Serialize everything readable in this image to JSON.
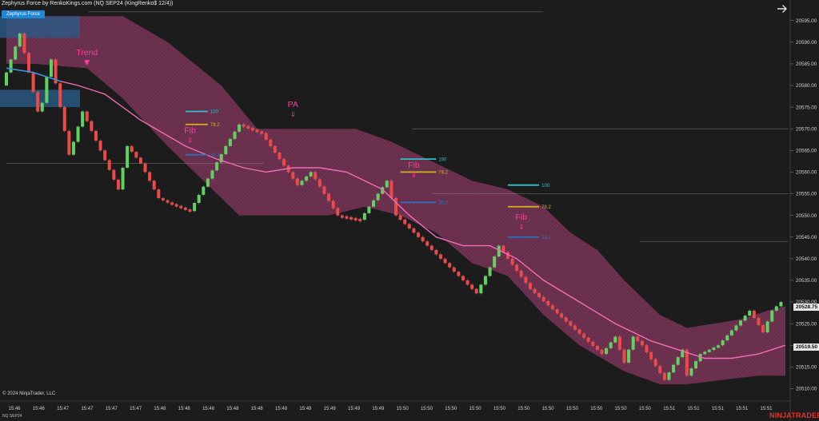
{
  "header": {
    "title": "Zephyrus Force by RenkoKings.com (NQ SEP24 (KingRenko$ 12/4))",
    "indicator_button": "Zephyrus Force"
  },
  "footer": {
    "copyright": "© 2024 NinjaTrader, LLC",
    "instrument": "NQ SEP24",
    "brand": "NINJATRADER"
  },
  "colors": {
    "background": "#1c1c1c",
    "bull": "#5fd35f",
    "bear": "#ef4848",
    "band": "#6e3050",
    "trend_line": "#f06cb4",
    "start_line": "#3a8fe0",
    "annotation": "#ff3d9a",
    "fib_100": "#2cc0c8",
    "fib_78": "#d4b11c",
    "fib_38": "#2a72c0",
    "grey_line": "#909090"
  },
  "chart_data": {
    "type": "renko",
    "instrument": "NQ SEP24",
    "ylim": [
      20507.5,
      20599.0
    ],
    "y_ticks": [
      20510.0,
      20515.0,
      20520.0,
      20525.0,
      20530.0,
      20535.0,
      20540.0,
      20545.0,
      20550.0,
      20555.0,
      20560.0,
      20565.0,
      20570.0,
      20575.0,
      20580.0,
      20585.0,
      20590.0,
      20595.0
    ],
    "x_labels": [
      "15:46",
      "15:46",
      "15:47",
      "15:47",
      "15:47",
      "15:47",
      "15:48",
      "15:48",
      "15:48",
      "15:48",
      "15:48",
      "15:48",
      "15:49",
      "15:49",
      "15:49",
      "15:49",
      "15:50",
      "15:50",
      "15:50",
      "15:50",
      "15:50",
      "15:50",
      "15:50",
      "15:50",
      "15:50",
      "15:50",
      "15:50",
      "15:51",
      "15:51",
      "15:51",
      "15:51",
      "15:51"
    ],
    "price_tags": [
      {
        "price": 20528.75,
        "label": "20528.75"
      },
      {
        "price": 20519.5,
        "label": "20519.50"
      }
    ],
    "brick_path": [
      [
        0,
        20580
      ],
      [
        4,
        20592
      ],
      [
        8,
        20574
      ],
      [
        9,
        20576
      ],
      [
        10,
        20582
      ],
      [
        11,
        20586
      ],
      [
        15,
        20564
      ],
      [
        16,
        20567
      ],
      [
        18,
        20574
      ],
      [
        26,
        20556
      ],
      [
        28,
        20566
      ],
      [
        31,
        20562
      ],
      [
        35,
        20554
      ],
      [
        37,
        20553
      ],
      [
        42,
        20551
      ],
      [
        50,
        20566
      ],
      [
        53,
        20571
      ],
      [
        58,
        20569
      ],
      [
        66,
        20557
      ],
      [
        69,
        20560
      ],
      [
        75,
        20550
      ],
      [
        80,
        20549
      ],
      [
        84,
        20555
      ],
      [
        86,
        20558
      ],
      [
        88,
        20550
      ],
      [
        106,
        20532
      ],
      [
        109,
        20538
      ],
      [
        111,
        20543
      ],
      [
        113,
        20540
      ],
      [
        118,
        20533
      ],
      [
        134,
        20518
      ],
      [
        137,
        20522
      ],
      [
        139,
        20516
      ],
      [
        141,
        20522
      ],
      [
        143,
        20520
      ],
      [
        148,
        20512
      ],
      [
        152,
        20519
      ],
      [
        153,
        20513
      ],
      [
        156,
        20518
      ],
      [
        160,
        20520
      ],
      [
        167,
        20528
      ],
      [
        170,
        20523
      ],
      [
        172,
        20528
      ],
      [
        174,
        20530
      ]
    ],
    "trend_line": [
      [
        12,
        20581
      ],
      [
        16,
        20580
      ],
      [
        22,
        20578
      ],
      [
        30,
        20572
      ],
      [
        40,
        20566
      ],
      [
        47,
        20563
      ],
      [
        53,
        20561
      ],
      [
        58,
        20560
      ],
      [
        64,
        20561
      ],
      [
        70,
        20561
      ],
      [
        76,
        20560
      ],
      [
        84,
        20556
      ],
      [
        90,
        20550
      ],
      [
        96,
        20545
      ],
      [
        102,
        20543
      ],
      [
        108,
        20543
      ],
      [
        114,
        20540
      ],
      [
        120,
        20535
      ],
      [
        128,
        20530
      ],
      [
        136,
        20525
      ],
      [
        144,
        20521
      ],
      [
        150,
        20519
      ],
      [
        156,
        20517
      ],
      [
        162,
        20517
      ],
      [
        168,
        20518
      ],
      [
        174,
        20520
      ]
    ],
    "start_line": [
      [
        0,
        20584
      ],
      [
        6,
        20583
      ],
      [
        12,
        20581
      ]
    ],
    "band_top": [
      [
        0,
        20596
      ],
      [
        6,
        20596
      ],
      [
        18,
        20596
      ],
      [
        26,
        20596
      ],
      [
        36,
        20590
      ],
      [
        48,
        20580
      ],
      [
        56,
        20570
      ],
      [
        66,
        20570
      ],
      [
        78,
        20570
      ],
      [
        86,
        20567
      ],
      [
        96,
        20562
      ],
      [
        104,
        20558
      ],
      [
        112,
        20556
      ],
      [
        120,
        20552
      ],
      [
        126,
        20546
      ],
      [
        132,
        20542
      ],
      [
        138,
        20535
      ],
      [
        146,
        20527
      ],
      [
        152,
        20524
      ],
      [
        158,
        20525
      ],
      [
        164,
        20526
      ],
      [
        170,
        20528
      ],
      [
        174,
        20529
      ]
    ],
    "band_bottom": [
      [
        0,
        20585
      ],
      [
        6,
        20585
      ],
      [
        18,
        20584
      ],
      [
        26,
        20577
      ],
      [
        36,
        20566
      ],
      [
        46,
        20556
      ],
      [
        52,
        20550
      ],
      [
        62,
        20550
      ],
      [
        72,
        20550
      ],
      [
        80,
        20552
      ],
      [
        88,
        20550
      ],
      [
        96,
        20546
      ],
      [
        104,
        20539
      ],
      [
        112,
        20536
      ],
      [
        120,
        20527
      ],
      [
        128,
        20520
      ],
      [
        138,
        20514
      ],
      [
        146,
        20511
      ],
      [
        152,
        20511
      ],
      [
        160,
        20512
      ],
      [
        168,
        20513
      ],
      [
        174,
        20513
      ]
    ],
    "annotations": [
      {
        "text": "Trend",
        "idx": 18,
        "price": 20587,
        "arrow": "▼"
      },
      {
        "text": "PA",
        "idx": 64,
        "price": 20575,
        "arrow": "⇓"
      },
      {
        "text": "Fib",
        "idx": 41,
        "price": 20569,
        "arrow": "⇓"
      },
      {
        "text": "Fib",
        "idx": 91,
        "price": 20561,
        "arrow": "⇓"
      },
      {
        "text": "Fib",
        "idx": 115,
        "price": 20549,
        "arrow": "⇓"
      }
    ],
    "fib_sets": [
      {
        "x0": 40,
        "x1": 45,
        "levels": [
          {
            "label": "100",
            "price": 20574,
            "color": "#2cc0c8"
          },
          {
            "label": "78.2",
            "price": 20571,
            "color": "#d4b11c"
          },
          {
            "label": "38.2",
            "price": 20564,
            "color": "#2a72c0"
          }
        ]
      },
      {
        "x0": 88,
        "x1": 96,
        "levels": [
          {
            "label": "100",
            "price": 20563,
            "color": "#2cc0c8"
          },
          {
            "label": "78.2",
            "price": 20560,
            "color": "#d4b11c"
          },
          {
            "label": "38.2",
            "price": 20553,
            "color": "#2a72c0"
          }
        ]
      },
      {
        "x0": 112,
        "x1": 119,
        "levels": [
          {
            "label": "100",
            "price": 20557,
            "color": "#2cc0c8"
          },
          {
            "label": "78.2",
            "price": 20552,
            "color": "#d4b11c"
          },
          {
            "label": "38.2",
            "price": 20545,
            "color": "#2a72c0"
          }
        ]
      }
    ]
  }
}
